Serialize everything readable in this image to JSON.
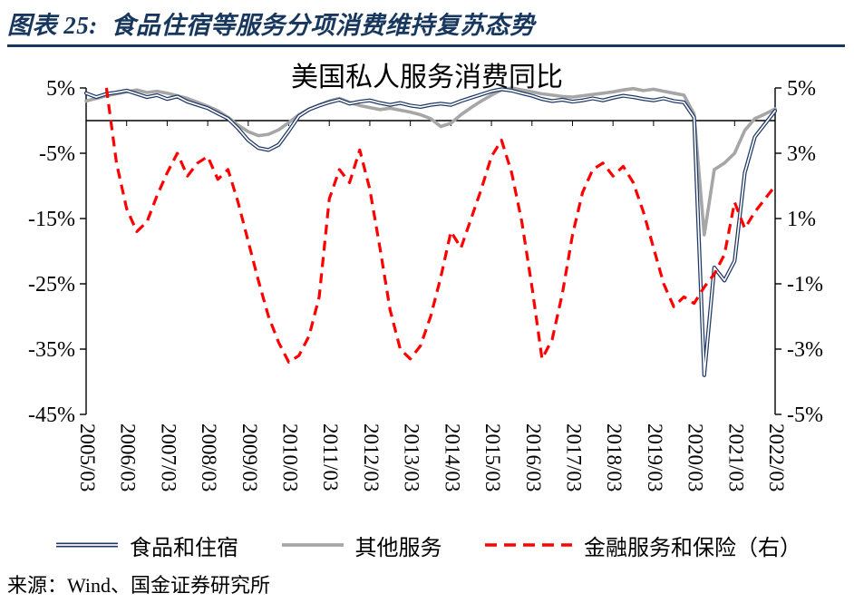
{
  "header": {
    "title": "图表 25:  食品住宿等服务分项消费维持复苏态势",
    "accent_color": "#17375E"
  },
  "source": {
    "text": "来源：Wind、国金证券研究所"
  },
  "chart_data": {
    "type": "line",
    "title": "美国私人服务消费同比",
    "legend_position": "bottom",
    "grid": false,
    "x_frequency": "quarterly",
    "x_tick_labels": [
      "2005/03",
      "2006/03",
      "2007/03",
      "2008/03",
      "2009/03",
      "2010/03",
      "2011/03",
      "2012/03",
      "2013/03",
      "2014/03",
      "2015/03",
      "2016/03",
      "2017/03",
      "2018/03",
      "2019/03",
      "2020/03",
      "2021/03",
      "2022/03"
    ],
    "x_tick_step": 4,
    "left_axis": {
      "min": -45,
      "max": 5,
      "tick_values": [
        5,
        -5,
        -15,
        -25,
        -35,
        -45
      ],
      "tick_labels": [
        "5%",
        "-5%",
        "-15%",
        "-25%",
        "-35%",
        "-45%"
      ]
    },
    "right_axis": {
      "min": -5,
      "max": 5,
      "tick_values": [
        5,
        3,
        1,
        -1,
        -3,
        -5
      ],
      "tick_labels": [
        "5%",
        "3%",
        "1%",
        "-1%",
        "-3%",
        "-5%"
      ]
    },
    "series": [
      {
        "id": "food-accommodation",
        "name": "食品和住宿",
        "axis": "left",
        "color": "#1F3864",
        "style": "double",
        "values": [
          4.2,
          3.6,
          4.1,
          4.3,
          4.6,
          4.1,
          3.6,
          3.9,
          3.3,
          3.7,
          2.9,
          2.4,
          1.9,
          1.1,
          0.3,
          -1.2,
          -3.0,
          -4.2,
          -4.5,
          -3.7,
          -1.6,
          0.7,
          1.7,
          2.3,
          2.8,
          3.2,
          2.6,
          2.9,
          3.1,
          2.7,
          2.4,
          2.7,
          2.3,
          2.1,
          2.4,
          2.6,
          2.4,
          3.0,
          3.5,
          4.0,
          4.5,
          4.8,
          4.6,
          4.2,
          3.8,
          3.3,
          3.0,
          3.2,
          2.9,
          3.1,
          3.4,
          3.1,
          3.5,
          3.8,
          3.6,
          3.3,
          3.1,
          3.4,
          3.0,
          2.8,
          0.5,
          -39.0,
          -22.5,
          -24.5,
          -21.5,
          -8.0,
          -2.5,
          -0.5,
          1.5
        ]
      },
      {
        "id": "other-services",
        "name": "其他服务",
        "axis": "left",
        "color": "#A6A6A6",
        "style": "solid",
        "values": [
          3.0,
          3.4,
          3.8,
          4.1,
          4.4,
          4.7,
          4.3,
          4.5,
          4.2,
          3.8,
          3.4,
          2.8,
          2.2,
          1.5,
          0.5,
          -0.7,
          -1.7,
          -2.3,
          -2.1,
          -1.4,
          -0.3,
          0.9,
          1.8,
          2.4,
          3.0,
          3.4,
          2.8,
          2.3,
          2.0,
          1.7,
          1.9,
          1.6,
          1.3,
          0.9,
          0.3,
          -0.9,
          -0.4,
          0.9,
          2.0,
          3.0,
          3.9,
          4.7,
          5.0,
          4.7,
          4.4,
          4.1,
          3.9,
          3.7,
          3.6,
          3.8,
          4.0,
          4.2,
          4.4,
          4.7,
          4.9,
          4.6,
          4.8,
          4.5,
          4.2,
          3.9,
          1.0,
          -17.5,
          -7.5,
          -6.5,
          -5.0,
          -1.5,
          0.3,
          1.0,
          1.8
        ]
      },
      {
        "id": "financial-insurance",
        "name": "金融服务和保险（右）",
        "axis": "right",
        "color": "#FF0000",
        "style": "dashed",
        "values": [
          null,
          null,
          5.0,
          2.7,
          1.3,
          0.6,
          0.9,
          1.7,
          2.4,
          3.0,
          2.3,
          2.7,
          2.9,
          2.2,
          2.5,
          1.5,
          0.3,
          -0.9,
          -2.0,
          -2.8,
          -3.4,
          -3.2,
          -2.6,
          -1.4,
          1.6,
          2.5,
          2.1,
          3.1,
          1.9,
          0.1,
          -1.8,
          -3.0,
          -3.3,
          -2.9,
          -2.0,
          -0.8,
          0.6,
          0.1,
          1.0,
          1.9,
          2.9,
          3.4,
          2.4,
          0.9,
          -1.1,
          -3.3,
          -2.7,
          -1.3,
          0.5,
          1.8,
          2.5,
          2.7,
          2.3,
          2.6,
          2.1,
          1.2,
          0.1,
          -1.0,
          -1.7,
          -1.4,
          -1.6,
          -1.1,
          -0.7,
          -0.1,
          1.5,
          0.7,
          1.2,
          1.6,
          2.0
        ]
      }
    ]
  }
}
